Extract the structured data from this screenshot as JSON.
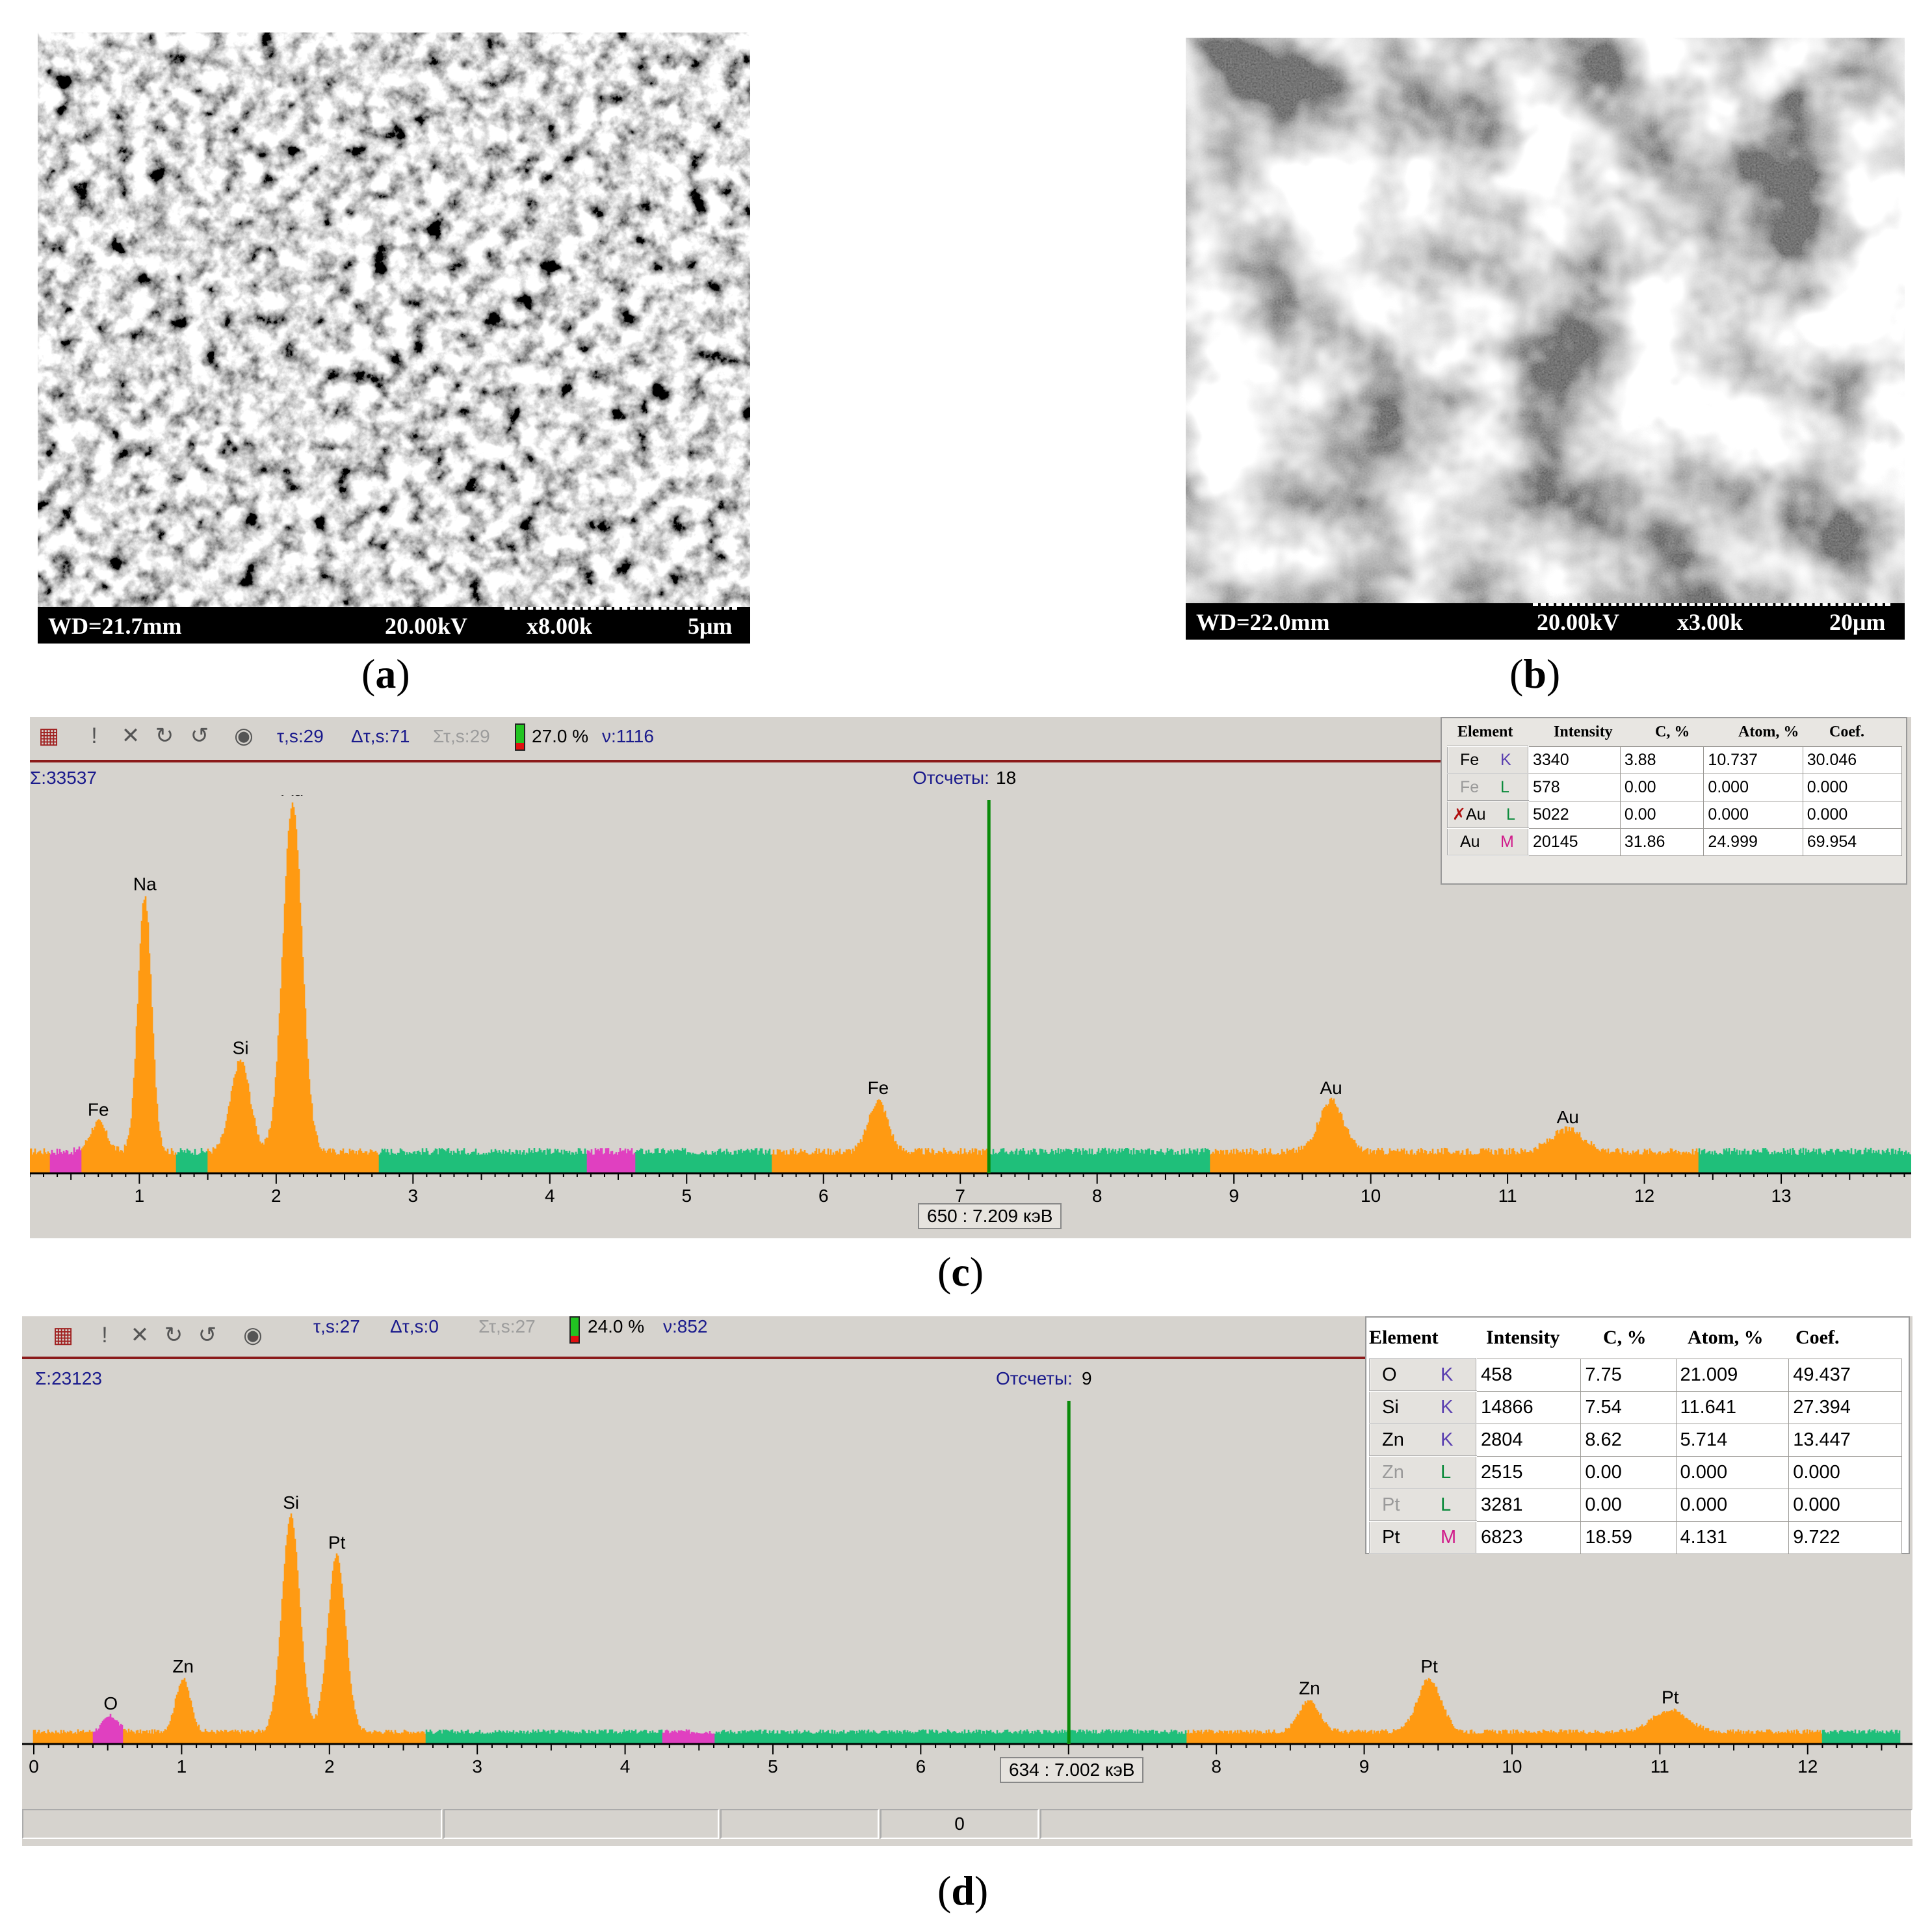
{
  "panels": {
    "a": {
      "caption": "a",
      "sem": {
        "wd": "WD=21.7mm",
        "kv": "20.00kV",
        "mag": "x8.00k",
        "scale": "5μm"
      }
    },
    "b": {
      "caption": "b",
      "sem": {
        "wd": "WD=22.0mm",
        "kv": "20.00kV",
        "mag": "x3.00k",
        "scale": "20μm"
      }
    },
    "c": {
      "caption": "c",
      "toolbar": {
        "tau": "τ,s:29",
        "dtau": "Δτ,s:71",
        "stau": "Στ,s:29",
        "percent": "27.0 %",
        "nu": "ν:1116"
      },
      "sum": "Σ:33537",
      "counts_label": "Отсчеты:",
      "counts_value": "18",
      "cursor": "650 : 7.209 кэВ",
      "table": {
        "headers": [
          "Element",
          "Intensity",
          "C, %",
          "Atom, %",
          "Coef."
        ],
        "rows": [
          {
            "el": "Fe",
            "shell": "K",
            "intensity": "3340",
            "c": "3.88",
            "atom": "10.737",
            "coef": "30.046",
            "active": true,
            "excluded": false
          },
          {
            "el": "Fe",
            "shell": "L",
            "intensity": "578",
            "c": "0.00",
            "atom": "0.000",
            "coef": "0.000",
            "active": false,
            "excluded": false
          },
          {
            "el": "Au",
            "shell": "L",
            "intensity": "5022",
            "c": "0.00",
            "atom": "0.000",
            "coef": "0.000",
            "active": true,
            "excluded": true
          },
          {
            "el": "Au",
            "shell": "M",
            "intensity": "20145",
            "c": "31.86",
            "atom": "24.999",
            "coef": "69.954",
            "active": true,
            "excluded": false
          }
        ]
      }
    },
    "d": {
      "caption": "d",
      "toolbar": {
        "tau": "τ,s:27",
        "dtau": "Δτ,s:0",
        "stau": "Στ,s:27",
        "percent": "24.0 %",
        "nu": "ν:852"
      },
      "sum": "Σ:23123",
      "counts_label": "Отсчеты:",
      "counts_value": "9",
      "cursor": "634 : 7.002 кэВ",
      "status_value": "0",
      "table": {
        "headers": [
          "Element",
          "Intensity",
          "C, %",
          "Atom, %",
          "Coef."
        ],
        "rows": [
          {
            "el": "O",
            "shell": "K",
            "intensity": "458",
            "c": "7.75",
            "atom": "21.009",
            "coef": "49.437",
            "active": true,
            "excluded": false
          },
          {
            "el": "Si",
            "shell": "K",
            "intensity": "14866",
            "c": "7.54",
            "atom": "11.641",
            "coef": "27.394",
            "active": true,
            "excluded": false
          },
          {
            "el": "Zn",
            "shell": "K",
            "intensity": "2804",
            "c": "8.62",
            "atom": "5.714",
            "coef": "13.447",
            "active": true,
            "excluded": false
          },
          {
            "el": "Zn",
            "shell": "L",
            "intensity": "2515",
            "c": "0.00",
            "atom": "0.000",
            "coef": "0.000",
            "active": false,
            "excluded": false
          },
          {
            "el": "Pt",
            "shell": "L",
            "intensity": "3281",
            "c": "0.00",
            "atom": "0.000",
            "coef": "0.000",
            "active": false,
            "excluded": false
          },
          {
            "el": "Pt",
            "shell": "M",
            "intensity": "6823",
            "c": "18.59",
            "atom": "4.131",
            "coef": "9.722",
            "active": true,
            "excluded": false
          }
        ]
      }
    }
  },
  "chart_data": [
    {
      "panel": "c",
      "type": "area",
      "xlabel": "",
      "ylabel": "",
      "x_ticks": [
        1,
        2,
        3,
        4,
        5,
        6,
        7,
        8,
        9,
        10,
        11,
        12,
        13
      ],
      "xlim": [
        0.2,
        13.95
      ],
      "ylim": [
        0,
        1
      ],
      "cursor_kev": 7.209,
      "baseline": 0.06,
      "peaks": [
        {
          "label": "Fe",
          "kev": 0.7,
          "height": 0.08,
          "width": 0.06
        },
        {
          "label": "Na",
          "kev": 1.04,
          "height": 0.7,
          "width": 0.05
        },
        {
          "label": "Si",
          "kev": 1.74,
          "height": 0.25,
          "width": 0.07
        },
        {
          "label": "Au",
          "kev": 2.12,
          "height": 0.96,
          "width": 0.07
        },
        {
          "label": "Fe",
          "kev": 6.4,
          "height": 0.14,
          "width": 0.07
        },
        {
          "label": "Au",
          "kev": 9.71,
          "height": 0.14,
          "width": 0.09
        },
        {
          "label": "Au",
          "kev": 11.44,
          "height": 0.06,
          "width": 0.12
        }
      ],
      "colors": {
        "orange": "#ff9a12",
        "green": "#1fbf7a",
        "pink": "#e040c0",
        "cursor": "#0a8a0a"
      },
      "green_ranges": [
        [
          1.27,
          1.5
        ],
        [
          2.75,
          4.27
        ],
        [
          4.62,
          5.62
        ],
        [
          7.2,
          8.82
        ],
        [
          12.4,
          13.95
        ]
      ],
      "hatch_ranges": [
        [
          0.35,
          0.58
        ],
        [
          4.27,
          4.62
        ]
      ]
    },
    {
      "panel": "d",
      "type": "area",
      "xlabel": "",
      "ylabel": "",
      "x_ticks": [
        0,
        1,
        2,
        3,
        4,
        5,
        6,
        7,
        8,
        9,
        10,
        11,
        12
      ],
      "xlim": [
        0,
        12.63
      ],
      "ylim": [
        0,
        1
      ],
      "cursor_kev": 7.002,
      "baseline": 0.04,
      "peaks": [
        {
          "label": "O",
          "kev": 0.52,
          "height": 0.05,
          "width": 0.05
        },
        {
          "label": "Zn",
          "kev": 1.01,
          "height": 0.17,
          "width": 0.05
        },
        {
          "label": "Si",
          "kev": 1.74,
          "height": 0.7,
          "width": 0.06
        },
        {
          "label": "Pt",
          "kev": 2.05,
          "height": 0.57,
          "width": 0.06
        },
        {
          "label": "Zn",
          "kev": 8.63,
          "height": 0.1,
          "width": 0.07
        },
        {
          "label": "Pt",
          "kev": 9.44,
          "height": 0.17,
          "width": 0.08
        },
        {
          "label": "Pt",
          "kev": 11.07,
          "height": 0.07,
          "width": 0.12
        }
      ],
      "colors": {
        "orange": "#ff9a12",
        "green": "#1fbf7a",
        "pink": "#e040c0",
        "cursor": "#0a8a0a"
      },
      "green_ranges": [
        [
          2.65,
          4.25
        ],
        [
          4.6,
          7.8
        ],
        [
          12.1,
          12.63
        ]
      ],
      "hatch_ranges": [
        [
          0.4,
          0.6
        ],
        [
          4.25,
          4.6
        ]
      ]
    }
  ]
}
